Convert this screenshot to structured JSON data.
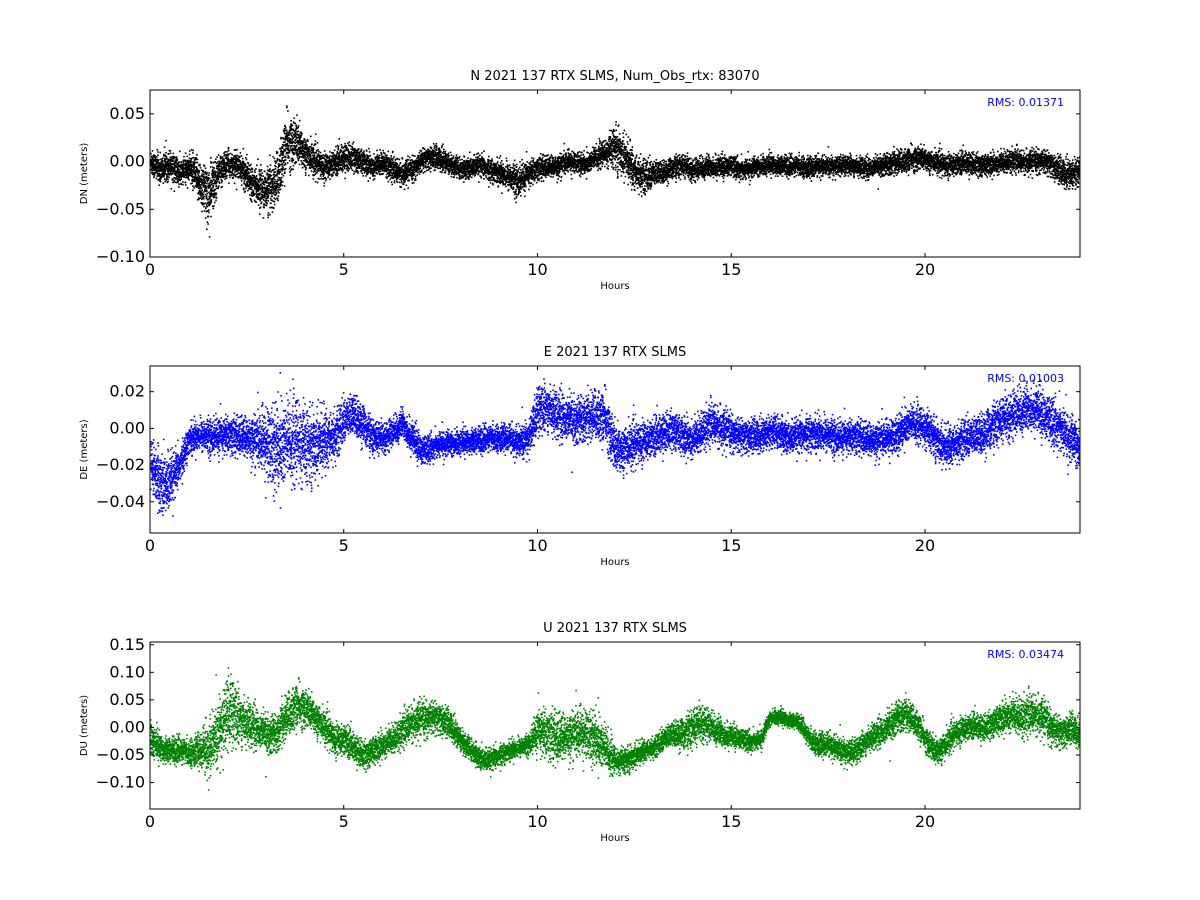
{
  "chart_data": [
    {
      "type": "scatter",
      "title": "N 2021 137 RTX  SLMS, Num_Obs_rtx: 83070",
      "xlabel": "Hours",
      "ylabel": "DN (meters)",
      "xlim": [
        0,
        24
      ],
      "ylim": [
        -0.1,
        0.075
      ],
      "xticks": [
        0,
        5,
        10,
        15,
        20
      ],
      "xtick_labels": [
        "0",
        "5",
        "10",
        "15",
        "20"
      ],
      "yticks": [
        -0.1,
        -0.05,
        0.0,
        0.05
      ],
      "ytick_labels": [
        "−0.10",
        "−0.05",
        "0.00",
        "0.05"
      ],
      "annotation": "RMS:  0.01371",
      "annotation_color": "#0000ff",
      "series_color": "#000000",
      "grid": false,
      "series": [
        {
          "x": [
            0,
            0.25,
            0.5,
            0.75,
            1.0,
            1.25,
            1.5,
            1.75,
            2.0,
            2.25,
            2.5,
            2.75,
            3.0,
            3.25,
            3.5,
            3.75,
            4.0,
            4.25,
            4.5,
            4.75,
            5.0,
            5.25,
            5.5,
            5.75,
            6.0,
            6.25,
            6.5,
            6.75,
            7.0,
            7.25,
            7.5,
            7.75,
            8.0,
            8.25,
            8.5,
            8.75,
            9.0,
            9.25,
            9.5,
            9.75,
            10.0,
            10.25,
            10.5,
            10.75,
            11.0,
            11.25,
            11.5,
            11.75,
            12.0,
            12.25,
            12.5,
            12.75,
            13.0,
            13.25,
            13.5,
            13.75,
            14.0,
            14.25,
            14.5,
            14.75,
            15.0,
            15.25,
            15.5,
            15.75,
            16.0,
            16.25,
            16.5,
            16.75,
            17.0,
            17.25,
            17.5,
            17.75,
            18.0,
            18.25,
            18.5,
            18.75,
            19.0,
            19.25,
            19.5,
            19.75,
            20.0,
            20.25,
            20.5,
            20.75,
            21.0,
            21.25,
            21.5,
            21.75,
            22.0,
            22.25,
            22.5,
            22.75,
            23.0,
            23.25,
            23.5,
            23.75,
            24.0
          ],
          "y": [
            0.0,
            -0.008,
            -0.002,
            -0.012,
            -0.005,
            -0.02,
            -0.035,
            -0.01,
            -0.002,
            -0.004,
            -0.015,
            -0.025,
            -0.03,
            -0.02,
            0.02,
            0.02,
            0.01,
            0.0,
            -0.005,
            0.0,
            0.005,
            0.005,
            0.0,
            -0.005,
            0.0,
            -0.008,
            -0.012,
            -0.008,
            0.002,
            0.005,
            0.004,
            -0.002,
            -0.008,
            -0.006,
            -0.004,
            -0.008,
            -0.01,
            -0.015,
            -0.02,
            -0.012,
            -0.006,
            -0.005,
            -0.004,
            0.0,
            0.0,
            -0.002,
            0.005,
            0.01,
            0.015,
            0.005,
            -0.01,
            -0.015,
            -0.012,
            -0.01,
            -0.005,
            -0.004,
            -0.008,
            -0.006,
            -0.004,
            -0.005,
            -0.004,
            -0.008,
            -0.006,
            -0.004,
            -0.002,
            -0.003,
            -0.004,
            -0.004,
            -0.006,
            -0.004,
            -0.005,
            -0.004,
            -0.003,
            -0.004,
            -0.006,
            -0.004,
            -0.002,
            0.0,
            0.002,
            0.004,
            0.003,
            0.0,
            -0.003,
            -0.002,
            0.0,
            -0.002,
            -0.003,
            -0.002,
            0.0,
            0.002,
            0.0,
            0.0,
            0.002,
            -0.003,
            -0.01,
            -0.012,
            -0.008
          ],
          "spread": [
            0.012,
            0.013,
            0.013,
            0.013,
            0.013,
            0.02,
            0.03,
            0.015,
            0.012,
            0.012,
            0.015,
            0.015,
            0.02,
            0.025,
            0.025,
            0.022,
            0.016,
            0.014,
            0.012,
            0.012,
            0.013,
            0.012,
            0.011,
            0.011,
            0.01,
            0.011,
            0.011,
            0.01,
            0.01,
            0.011,
            0.011,
            0.01,
            0.01,
            0.01,
            0.01,
            0.01,
            0.011,
            0.012,
            0.015,
            0.012,
            0.011,
            0.01,
            0.01,
            0.01,
            0.01,
            0.01,
            0.011,
            0.012,
            0.02,
            0.018,
            0.017,
            0.015,
            0.012,
            0.01,
            0.01,
            0.01,
            0.01,
            0.01,
            0.01,
            0.01,
            0.009,
            0.009,
            0.009,
            0.009,
            0.009,
            0.009,
            0.009,
            0.009,
            0.009,
            0.009,
            0.009,
            0.009,
            0.009,
            0.009,
            0.009,
            0.009,
            0.01,
            0.011,
            0.011,
            0.011,
            0.011,
            0.01,
            0.01,
            0.01,
            0.01,
            0.01,
            0.01,
            0.01,
            0.01,
            0.01,
            0.01,
            0.01,
            0.01,
            0.011,
            0.013,
            0.014,
            0.014
          ]
        }
      ]
    },
    {
      "type": "scatter",
      "title": "E 2021 137 RTX  SLMS",
      "xlabel": "Hours",
      "ylabel": "DE (meters)",
      "xlim": [
        0,
        24
      ],
      "ylim": [
        -0.057,
        0.034
      ],
      "xticks": [
        0,
        5,
        10,
        15,
        20
      ],
      "xtick_labels": [
        "0",
        "5",
        "10",
        "15",
        "20"
      ],
      "yticks": [
        -0.04,
        -0.02,
        0.0,
        0.02
      ],
      "ytick_labels": [
        "−0.04",
        "−0.02",
        "0.00",
        "0.02"
      ],
      "annotation": "RMS:  0.01003",
      "annotation_color": "#0000ff",
      "series_color": "#0000ff",
      "grid": false,
      "series": [
        {
          "x": [
            0,
            0.25,
            0.5,
            0.75,
            1.0,
            1.25,
            1.5,
            1.75,
            2.0,
            2.25,
            2.5,
            2.75,
            3.0,
            3.25,
            3.5,
            3.75,
            4.0,
            4.25,
            4.5,
            4.75,
            5.0,
            5.25,
            5.5,
            5.75,
            6.0,
            6.25,
            6.5,
            6.75,
            7.0,
            7.25,
            7.5,
            7.75,
            8.0,
            8.25,
            8.5,
            8.75,
            9.0,
            9.25,
            9.5,
            9.75,
            10.0,
            10.25,
            10.5,
            10.75,
            11.0,
            11.25,
            11.5,
            11.75,
            12.0,
            12.25,
            12.5,
            12.75,
            13.0,
            13.25,
            13.5,
            13.75,
            14.0,
            14.25,
            14.5,
            14.75,
            15.0,
            15.25,
            15.5,
            15.75,
            16.0,
            16.25,
            16.5,
            16.75,
            17.0,
            17.25,
            17.5,
            17.75,
            18.0,
            18.25,
            18.5,
            18.75,
            19.0,
            19.25,
            19.5,
            19.75,
            20.0,
            20.25,
            20.5,
            20.75,
            21.0,
            21.25,
            21.5,
            21.75,
            22.0,
            22.25,
            22.5,
            22.75,
            23.0,
            23.25,
            23.5,
            23.75,
            24.0
          ],
          "y": [
            -0.02,
            -0.03,
            -0.03,
            -0.02,
            -0.005,
            -0.003,
            -0.004,
            -0.004,
            -0.003,
            -0.004,
            -0.005,
            -0.006,
            -0.008,
            -0.01,
            -0.008,
            -0.006,
            -0.01,
            -0.008,
            -0.006,
            -0.004,
            0.005,
            0.008,
            0.002,
            -0.005,
            -0.005,
            -0.002,
            0.003,
            -0.005,
            -0.012,
            -0.01,
            -0.008,
            -0.008,
            -0.007,
            -0.006,
            -0.006,
            -0.005,
            -0.005,
            -0.005,
            -0.008,
            -0.005,
            0.01,
            0.012,
            0.008,
            0.006,
            0.005,
            0.006,
            0.008,
            0.005,
            -0.012,
            -0.01,
            -0.008,
            -0.006,
            -0.004,
            -0.002,
            0.0,
            -0.004,
            -0.006,
            0.0,
            0.003,
            0.0,
            -0.002,
            -0.004,
            -0.004,
            -0.003,
            -0.001,
            -0.003,
            -0.005,
            -0.004,
            -0.002,
            -0.002,
            -0.003,
            -0.005,
            -0.004,
            -0.004,
            -0.006,
            -0.006,
            -0.005,
            -0.003,
            0.002,
            0.003,
            0.0,
            -0.005,
            -0.01,
            -0.008,
            -0.005,
            -0.004,
            -0.002,
            0.002,
            0.005,
            0.008,
            0.01,
            0.012,
            0.008,
            0.004,
            0.0,
            -0.006,
            -0.01
          ],
          "spread": [
            0.012,
            0.015,
            0.014,
            0.008,
            0.007,
            0.007,
            0.008,
            0.009,
            0.009,
            0.009,
            0.01,
            0.012,
            0.018,
            0.022,
            0.022,
            0.02,
            0.018,
            0.016,
            0.014,
            0.012,
            0.01,
            0.01,
            0.009,
            0.008,
            0.007,
            0.007,
            0.007,
            0.008,
            0.007,
            0.006,
            0.006,
            0.006,
            0.006,
            0.006,
            0.006,
            0.006,
            0.006,
            0.006,
            0.008,
            0.008,
            0.012,
            0.011,
            0.011,
            0.011,
            0.011,
            0.011,
            0.012,
            0.012,
            0.012,
            0.011,
            0.01,
            0.009,
            0.009,
            0.009,
            0.009,
            0.009,
            0.009,
            0.009,
            0.009,
            0.009,
            0.008,
            0.008,
            0.008,
            0.008,
            0.008,
            0.008,
            0.008,
            0.008,
            0.008,
            0.008,
            0.008,
            0.008,
            0.008,
            0.008,
            0.008,
            0.008,
            0.008,
            0.009,
            0.009,
            0.009,
            0.009,
            0.009,
            0.009,
            0.009,
            0.009,
            0.009,
            0.01,
            0.01,
            0.01,
            0.011,
            0.011,
            0.011,
            0.011,
            0.011,
            0.011,
            0.011,
            0.011
          ]
        }
      ]
    },
    {
      "type": "scatter",
      "title": "U 2021 137 RTX  SLMS",
      "xlabel": "Hours",
      "ylabel": "DU (meters)",
      "xlim": [
        0,
        24
      ],
      "ylim": [
        -0.148,
        0.155
      ],
      "xticks": [
        0,
        5,
        10,
        15,
        20
      ],
      "xtick_labels": [
        "0",
        "5",
        "10",
        "15",
        "20"
      ],
      "yticks": [
        -0.1,
        -0.05,
        0.0,
        0.05,
        0.1,
        0.15
      ],
      "ytick_labels": [
        "−0.10",
        "−0.05",
        "0.00",
        "0.05",
        "0.10",
        "0.15"
      ],
      "annotation": "RMS:  0.03474",
      "annotation_color": "#0000ff",
      "series_color": "#008000",
      "grid": false,
      "series": [
        {
          "x": [
            0,
            0.25,
            0.5,
            0.75,
            1.0,
            1.25,
            1.5,
            1.75,
            2.0,
            2.25,
            2.5,
            2.75,
            3.0,
            3.25,
            3.5,
            3.75,
            4.0,
            4.25,
            4.5,
            4.75,
            5.0,
            5.25,
            5.5,
            5.75,
            6.0,
            6.25,
            6.5,
            6.75,
            7.0,
            7.25,
            7.5,
            7.75,
            8.0,
            8.25,
            8.5,
            8.75,
            9.0,
            9.25,
            9.5,
            9.75,
            10.0,
            10.25,
            10.5,
            10.75,
            11.0,
            11.25,
            11.5,
            11.75,
            12.0,
            12.25,
            12.5,
            12.75,
            13.0,
            13.25,
            13.5,
            13.75,
            14.0,
            14.25,
            14.5,
            14.75,
            15.0,
            15.25,
            15.5,
            15.75,
            16.0,
            16.25,
            16.5,
            16.75,
            17.0,
            17.25,
            17.5,
            17.75,
            18.0,
            18.25,
            18.5,
            18.75,
            19.0,
            19.25,
            19.5,
            19.75,
            20.0,
            20.25,
            20.5,
            20.75,
            21.0,
            21.25,
            21.5,
            21.75,
            22.0,
            22.25,
            22.5,
            22.75,
            23.0,
            23.25,
            23.5,
            23.75,
            24.0
          ],
          "y": [
            -0.02,
            -0.035,
            -0.04,
            -0.04,
            -0.045,
            -0.04,
            -0.04,
            -0.01,
            0.03,
            0.02,
            0.01,
            0.0,
            -0.01,
            -0.01,
            0.02,
            0.04,
            0.035,
            0.02,
            0.0,
            -0.02,
            -0.02,
            -0.035,
            -0.05,
            -0.04,
            -0.03,
            -0.02,
            -0.005,
            0.01,
            0.015,
            0.02,
            0.015,
            0.005,
            -0.02,
            -0.04,
            -0.055,
            -0.06,
            -0.05,
            -0.04,
            -0.035,
            -0.03,
            -0.005,
            -0.01,
            -0.02,
            -0.015,
            -0.01,
            -0.01,
            -0.02,
            -0.04,
            -0.06,
            -0.06,
            -0.05,
            -0.04,
            -0.035,
            -0.02,
            -0.01,
            -0.01,
            0.0,
            0.01,
            0.0,
            -0.01,
            -0.015,
            -0.02,
            -0.025,
            -0.02,
            0.02,
            0.02,
            0.015,
            0.01,
            -0.02,
            -0.03,
            -0.03,
            -0.04,
            -0.045,
            -0.04,
            -0.02,
            -0.01,
            0.0,
            0.02,
            0.025,
            0.01,
            -0.02,
            -0.045,
            -0.03,
            -0.01,
            0.0,
            0.005,
            0.0,
            0.01,
            0.02,
            0.025,
            0.02,
            0.025,
            0.02,
            0.0,
            -0.01,
            0.0,
            -0.01
          ],
          "spread": [
            0.025,
            0.022,
            0.02,
            0.02,
            0.02,
            0.025,
            0.045,
            0.05,
            0.06,
            0.045,
            0.035,
            0.03,
            0.03,
            0.03,
            0.035,
            0.035,
            0.03,
            0.028,
            0.025,
            0.024,
            0.025,
            0.022,
            0.022,
            0.022,
            0.022,
            0.022,
            0.025,
            0.028,
            0.028,
            0.025,
            0.025,
            0.022,
            0.02,
            0.018,
            0.018,
            0.018,
            0.016,
            0.015,
            0.015,
            0.015,
            0.035,
            0.04,
            0.04,
            0.035,
            0.038,
            0.04,
            0.045,
            0.038,
            0.02,
            0.02,
            0.018,
            0.016,
            0.016,
            0.018,
            0.02,
            0.025,
            0.03,
            0.028,
            0.024,
            0.022,
            0.018,
            0.016,
            0.015,
            0.014,
            0.012,
            0.012,
            0.012,
            0.012,
            0.016,
            0.018,
            0.018,
            0.02,
            0.02,
            0.02,
            0.02,
            0.02,
            0.025,
            0.025,
            0.025,
            0.022,
            0.02,
            0.022,
            0.022,
            0.02,
            0.02,
            0.02,
            0.02,
            0.022,
            0.025,
            0.028,
            0.03,
            0.03,
            0.028,
            0.026,
            0.024,
            0.024,
            0.024
          ]
        }
      ]
    }
  ]
}
